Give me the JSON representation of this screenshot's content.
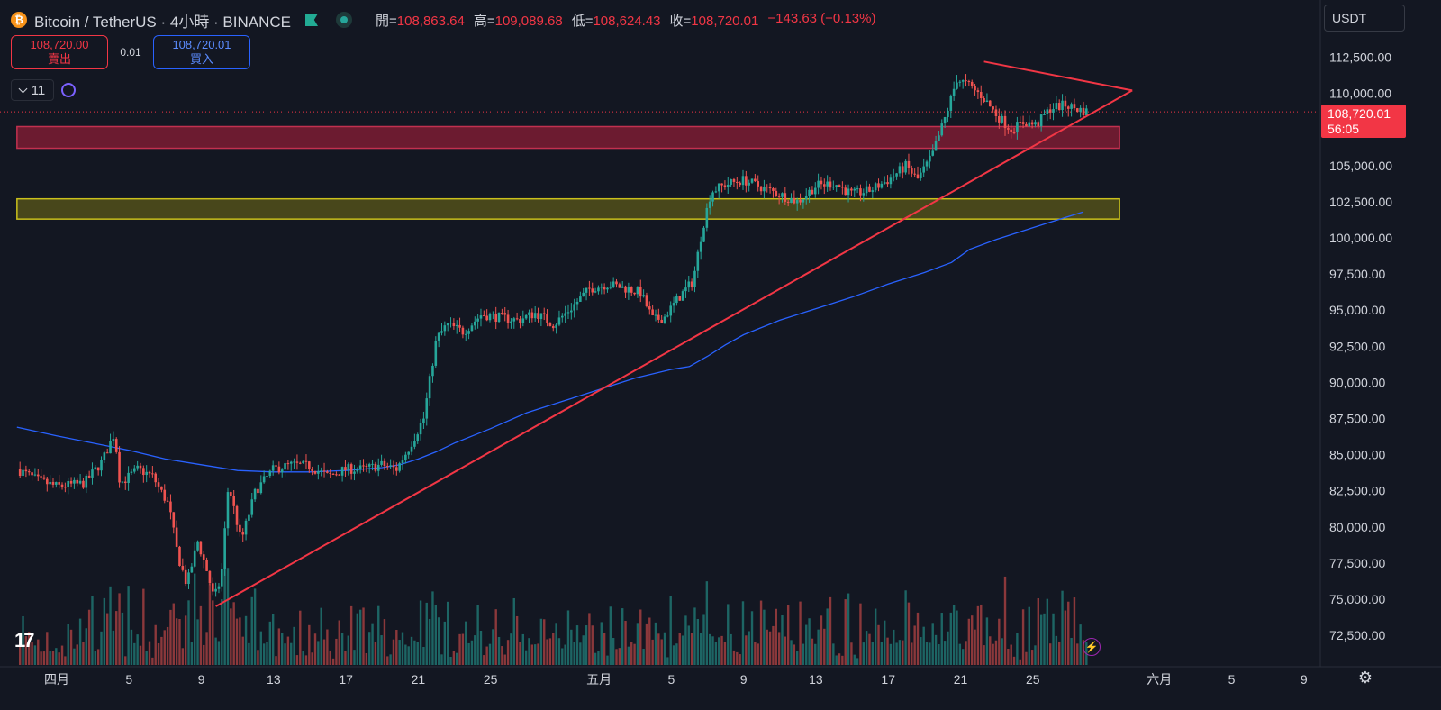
{
  "header": {
    "symbol": "Bitcoin / TetherUS · 4小時 · BINANCE",
    "ohlc": [
      {
        "label": "開=",
        "value": "108,863.64"
      },
      {
        "label": "高=",
        "value": "109,089.68"
      },
      {
        "label": "低=",
        "value": "108,624.43"
      },
      {
        "label": "收=",
        "value": "108,720.01"
      },
      {
        "label": "",
        "value": "−143.63 (−0.13%)"
      }
    ]
  },
  "trade": {
    "sell_price": "108,720.00",
    "sell_label": "賣出",
    "spread": "0.01",
    "buy_price": "108,720.01",
    "buy_label": "買入"
  },
  "indicator_count": "11",
  "currency": "USDT",
  "last_price": {
    "price": "108,720.01",
    "countdown": "56:05"
  },
  "colors": {
    "background": "#131722",
    "up": "#26a69a",
    "down": "#ef5350",
    "trendline": "#f23645",
    "ma": "#2962ff",
    "zone_red": "#8b1d35",
    "zone_yellow": "#c9c01c"
  },
  "chart_data": {
    "type": "candlestick",
    "symbol": "BTCUSDT",
    "interval": "4h",
    "y_ticks": [
      72500,
      75000,
      77500,
      80000,
      82500,
      85000,
      87500,
      90000,
      92500,
      95000,
      97500,
      100000,
      102500,
      105000,
      107500,
      110000,
      112500
    ],
    "y_tick_labels": [
      "72,500.00",
      "75,000.00",
      "77,500.00",
      "80,000.00",
      "82,500.00",
      "85,000.00",
      "87,500.00",
      "90,000.00",
      "92,500.00",
      "95,000.00",
      "97,500.00",
      "100,000.00",
      "102,500.00",
      "105,000.00",
      "107,500.00",
      "110,000.00",
      "112,500.00"
    ],
    "x_ticks": [
      {
        "label": "四月",
        "day": 0
      },
      {
        "label": "5",
        "day": 4
      },
      {
        "label": "9",
        "day": 8
      },
      {
        "label": "13",
        "day": 12
      },
      {
        "label": "17",
        "day": 16
      },
      {
        "label": "21",
        "day": 20
      },
      {
        "label": "25",
        "day": 24
      },
      {
        "label": "五月",
        "day": 30
      },
      {
        "label": "5",
        "day": 34
      },
      {
        "label": "9",
        "day": 38
      },
      {
        "label": "13",
        "day": 42
      },
      {
        "label": "17",
        "day": 46
      },
      {
        "label": "21",
        "day": 50
      },
      {
        "label": "25",
        "day": 54
      },
      {
        "label": "六月",
        "day": 61
      },
      {
        "label": "5",
        "day": 65
      },
      {
        "label": "9",
        "day": 69
      }
    ],
    "price_path": [
      [
        -2.2,
        84000
      ],
      [
        -1,
        83200
      ],
      [
        0,
        82800
      ],
      [
        1.5,
        83000
      ],
      [
        2.5,
        84500
      ],
      [
        3.2,
        86500
      ],
      [
        3.5,
        83000
      ],
      [
        4.5,
        84000
      ],
      [
        5.3,
        83500
      ],
      [
        6.2,
        81500
      ],
      [
        6.7,
        78000
      ],
      [
        7.2,
        76000
      ],
      [
        7.8,
        79000
      ],
      [
        8.3,
        77000
      ],
      [
        8.7,
        75000
      ],
      [
        9.1,
        76500
      ],
      [
        9.5,
        83000
      ],
      [
        10.2,
        79000
      ],
      [
        11,
        82500
      ],
      [
        12,
        84000
      ],
      [
        13,
        84300
      ],
      [
        14,
        84200
      ],
      [
        15,
        83500
      ],
      [
        16,
        84000
      ],
      [
        17,
        84000
      ],
      [
        18,
        84300
      ],
      [
        18.8,
        84000
      ],
      [
        19.5,
        85500
      ],
      [
        20.3,
        87500
      ],
      [
        21,
        93000
      ],
      [
        21.6,
        94000
      ],
      [
        22.5,
        93500
      ],
      [
        23.5,
        94700
      ],
      [
        24.5,
        94500
      ],
      [
        25.5,
        94300
      ],
      [
        26.5,
        94800
      ],
      [
        27.5,
        94000
      ],
      [
        28.5,
        95200
      ],
      [
        29.5,
        96500
      ],
      [
        30.5,
        96800
      ],
      [
        31.5,
        96500
      ],
      [
        32.3,
        96200
      ],
      [
        33,
        94300
      ],
      [
        33.6,
        94500
      ],
      [
        34.5,
        96000
      ],
      [
        35.2,
        97000
      ],
      [
        35.7,
        100500
      ],
      [
        36.2,
        103200
      ],
      [
        37,
        103700
      ],
      [
        38,
        104000
      ],
      [
        39,
        103500
      ],
      [
        40,
        103000
      ],
      [
        41,
        102500
      ],
      [
        42,
        103600
      ],
      [
        43,
        103800
      ],
      [
        44,
        103000
      ],
      [
        45,
        103300
      ],
      [
        46,
        104000
      ],
      [
        47,
        105000
      ],
      [
        47.6,
        104000
      ],
      [
        48.4,
        105600
      ],
      [
        49.2,
        108500
      ],
      [
        49.8,
        111000
      ],
      [
        50.5,
        110500
      ],
      [
        51.2,
        109800
      ],
      [
        52,
        108500
      ],
      [
        52.8,
        107500
      ],
      [
        53.5,
        108000
      ],
      [
        54.2,
        107800
      ],
      [
        55,
        109000
      ],
      [
        55.8,
        109200
      ],
      [
        56.5,
        108900
      ],
      [
        57,
        108720
      ]
    ],
    "ma_path": [
      [
        -2.2,
        86900
      ],
      [
        0,
        86300
      ],
      [
        2,
        85800
      ],
      [
        4,
        85300
      ],
      [
        6,
        84700
      ],
      [
        8,
        84300
      ],
      [
        10,
        83900
      ],
      [
        12,
        83800
      ],
      [
        14,
        83800
      ],
      [
        16,
        83900
      ],
      [
        18,
        84100
      ],
      [
        19,
        84300
      ],
      [
        20,
        84700
      ],
      [
        21,
        85200
      ],
      [
        22,
        85800
      ],
      [
        24,
        86800
      ],
      [
        26,
        87900
      ],
      [
        28,
        88700
      ],
      [
        30,
        89500
      ],
      [
        32,
        90300
      ],
      [
        34,
        90900
      ],
      [
        35,
        91100
      ],
      [
        36,
        91800
      ],
      [
        37,
        92600
      ],
      [
        38,
        93300
      ],
      [
        40,
        94300
      ],
      [
        42,
        95100
      ],
      [
        44,
        95900
      ],
      [
        46,
        96800
      ],
      [
        48,
        97600
      ],
      [
        49.5,
        98300
      ],
      [
        50.5,
        99200
      ],
      [
        52,
        99900
      ],
      [
        53.5,
        100500
      ],
      [
        55,
        101100
      ],
      [
        56.8,
        101800
      ]
    ],
    "trendlines": [
      {
        "name": "support",
        "from": [
          8.8,
          74500
        ],
        "to": [
          59.5,
          110200
        ]
      },
      {
        "name": "resistance",
        "from": [
          51.3,
          112200
        ],
        "to": [
          59.5,
          110200
        ]
      }
    ],
    "zones": [
      {
        "name": "resistance-zone",
        "color": "red",
        "from_day": -2.2,
        "to_day": 58.8,
        "low": 106200,
        "high": 107700
      },
      {
        "name": "support-zone",
        "color": "yellow",
        "from_day": -2.2,
        "to_day": 58.8,
        "low": 101300,
        "high": 102700
      }
    ],
    "last_price": 108720.01
  }
}
